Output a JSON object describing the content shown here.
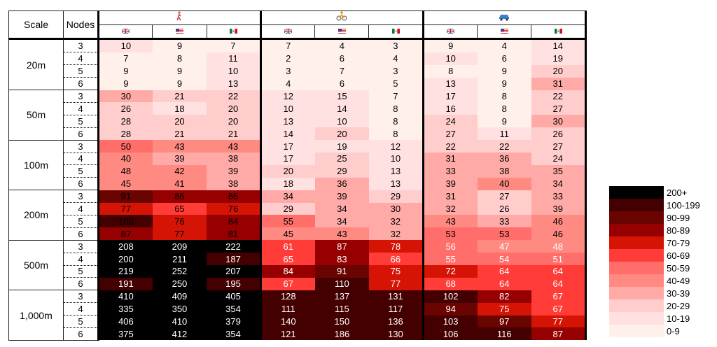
{
  "headers": {
    "scale": "Scale",
    "nodes": "Nodes"
  },
  "modes": [
    {
      "icon": "walking-person-icon"
    },
    {
      "icon": "bicycle-icon"
    },
    {
      "icon": "car-icon"
    }
  ],
  "countries": [
    {
      "icon": "uk-flag-icon"
    },
    {
      "icon": "us-flag-icon"
    },
    {
      "icon": "mexico-flag-icon"
    }
  ],
  "chart_data": {
    "type": "heatmap",
    "row_groups": [
      "20m",
      "50m",
      "100m",
      "200m",
      "500m",
      "1,000m"
    ],
    "nodes": [
      "3",
      "4",
      "5",
      "6"
    ],
    "column_groups": [
      "walking",
      "cycling",
      "driving"
    ],
    "columns": [
      "UK",
      "US",
      "Mexico"
    ],
    "values": [
      [
        10,
        9,
        7,
        7,
        4,
        3,
        9,
        4,
        14
      ],
      [
        7,
        8,
        11,
        2,
        6,
        4,
        10,
        6,
        19
      ],
      [
        9,
        9,
        10,
        3,
        7,
        3,
        8,
        9,
        20
      ],
      [
        9,
        9,
        13,
        4,
        6,
        5,
        13,
        9,
        31
      ],
      [
        30,
        21,
        22,
        12,
        15,
        7,
        17,
        8,
        22
      ],
      [
        26,
        18,
        20,
        10,
        14,
        8,
        16,
        8,
        27
      ],
      [
        28,
        20,
        20,
        13,
        10,
        8,
        24,
        9,
        30
      ],
      [
        28,
        21,
        21,
        14,
        20,
        8,
        27,
        11,
        26
      ],
      [
        50,
        43,
        43,
        17,
        19,
        12,
        22,
        22,
        27
      ],
      [
        40,
        39,
        38,
        17,
        25,
        10,
        31,
        36,
        24
      ],
      [
        48,
        42,
        39,
        20,
        29,
        13,
        33,
        38,
        35
      ],
      [
        45,
        41,
        38,
        18,
        36,
        13,
        39,
        40,
        34
      ],
      [
        91,
        86,
        86,
        34,
        39,
        29,
        31,
        27,
        33
      ],
      [
        77,
        65,
        76,
        29,
        34,
        30,
        32,
        26,
        39
      ],
      [
        100,
        76,
        84,
        55,
        34,
        32,
        43,
        33,
        46
      ],
      [
        87,
        77,
        81,
        45,
        43,
        32,
        53,
        53,
        46
      ],
      [
        208,
        209,
        222,
        61,
        87,
        78,
        56,
        47,
        48
      ],
      [
        200,
        211,
        187,
        65,
        83,
        66,
        55,
        54,
        51
      ],
      [
        219,
        252,
        207,
        84,
        91,
        75,
        72,
        64,
        64
      ],
      [
        191,
        250,
        195,
        67,
        110,
        77,
        68,
        64,
        64
      ],
      [
        410,
        409,
        405,
        128,
        137,
        131,
        102,
        82,
        67
      ],
      [
        335,
        350,
        354,
        111,
        115,
        117,
        94,
        75,
        67
      ],
      [
        406,
        410,
        379,
        140,
        150,
        136,
        103,
        97,
        77
      ],
      [
        375,
        412,
        354,
        121,
        186,
        130,
        106,
        116,
        87
      ]
    ],
    "legend": [
      {
        "label": "200+",
        "min": 200,
        "color": "#000000"
      },
      {
        "label": "100-199",
        "min": 100,
        "color": "#440000"
      },
      {
        "label": "90-99",
        "min": 90,
        "color": "#6a0400"
      },
      {
        "label": "80-89",
        "min": 80,
        "color": "#960000"
      },
      {
        "label": "70-79",
        "min": 70,
        "color": "#d61406"
      },
      {
        "label": "60-69",
        "min": 60,
        "color": "#ff3c38"
      },
      {
        "label": "50-59",
        "min": 50,
        "color": "#ff6e6a"
      },
      {
        "label": "40-49",
        "min": 40,
        "color": "#ff8a82"
      },
      {
        "label": "30-39",
        "min": 30,
        "color": "#ffaaa6"
      },
      {
        "label": "20-29",
        "min": 20,
        "color": "#ffcdcc"
      },
      {
        "label": "10-19",
        "min": 10,
        "color": "#ffe1e1"
      },
      {
        "label": "0-9",
        "min": 0,
        "color": "#fff1ea"
      }
    ],
    "legend_position": "right"
  }
}
